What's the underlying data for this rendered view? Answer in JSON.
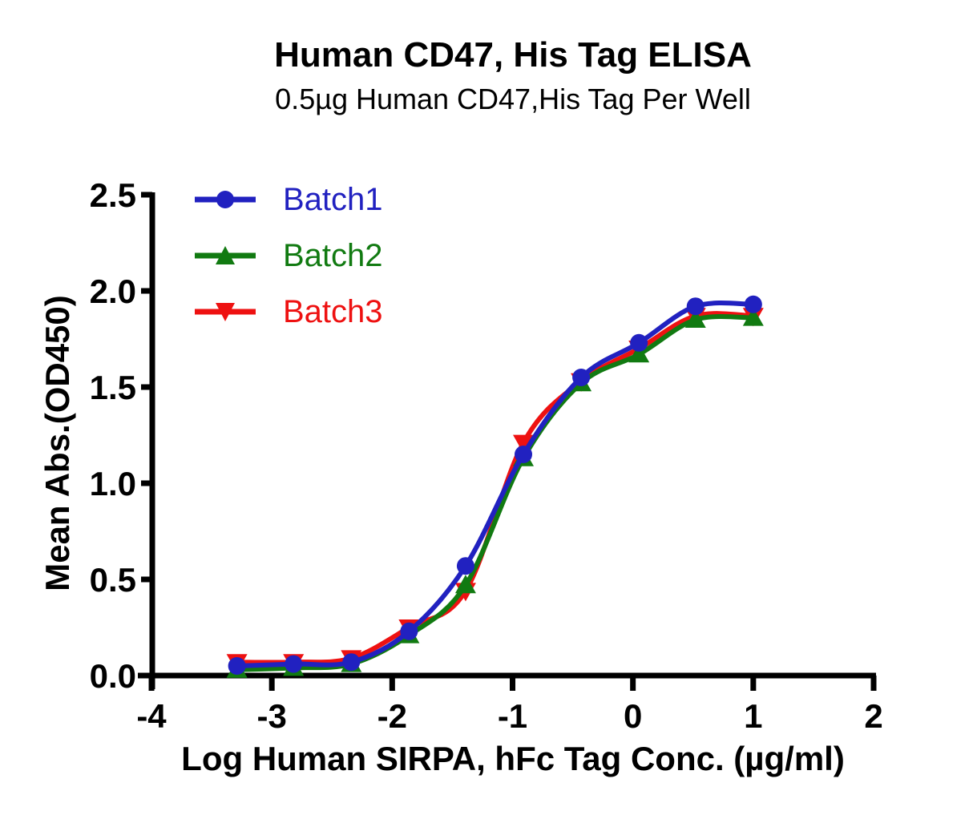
{
  "chart_data": {
    "type": "line",
    "title": "Human CD47, His Tag ELISA",
    "subtitle": "0.5µg Human CD47,His Tag Per Well",
    "xlabel": "Log Human SIRPA, hFc Tag Conc. (µg/ml)",
    "ylabel": "Mean Abs.(OD450)",
    "xlim": [
      -4,
      2
    ],
    "ylim": [
      0,
      2.5
    ],
    "xticks": [
      -4,
      -3,
      -2,
      -1,
      0,
      1,
      2
    ],
    "xtick_labels": [
      "-4",
      "-3",
      "-2",
      "-1",
      "0",
      "1",
      "2"
    ],
    "yticks": [
      0,
      0.5,
      1,
      1.5,
      2,
      2.5
    ],
    "ytick_labels": [
      "0.0",
      "0.5",
      "1.0",
      "1.5",
      "2.0",
      "2.5"
    ],
    "grid": false,
    "legend_position": "top-left-inside",
    "curve_style": "smooth sigmoidal 4PL fit through points",
    "axis_color": "#000000",
    "x": [
      -3.29,
      -2.82,
      -2.34,
      -1.86,
      -1.39,
      -0.91,
      -0.43,
      0.05,
      0.52,
      1.0
    ],
    "series": [
      {
        "name": "Batch1",
        "color": "#2121C0",
        "marker": "circle",
        "values": [
          0.05,
          0.06,
          0.07,
          0.23,
          0.57,
          1.15,
          1.55,
          1.73,
          1.92,
          1.93
        ]
      },
      {
        "name": "Batch2",
        "color": "#117A11",
        "marker": "triangle-up",
        "values": [
          0.03,
          0.04,
          0.06,
          0.21,
          0.47,
          1.13,
          1.52,
          1.67,
          1.85,
          1.86
        ]
      },
      {
        "name": "Batch3",
        "color": "#EE1111",
        "marker": "triangle-down",
        "values": [
          0.07,
          0.07,
          0.09,
          0.25,
          0.44,
          1.21,
          1.53,
          1.7,
          1.87,
          1.87
        ]
      }
    ]
  }
}
